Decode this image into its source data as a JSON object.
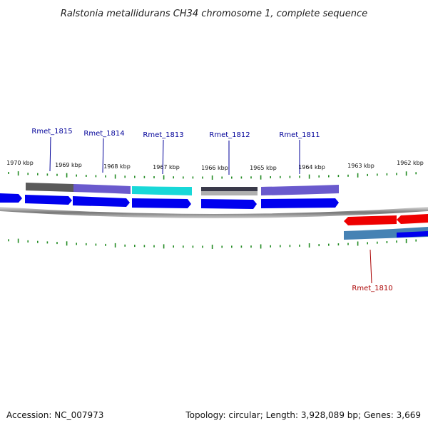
{
  "title": "Ralstonia metallidurans CH34 chromosome 1, complete sequence",
  "footer": {
    "accession": "Accession: NC_007973",
    "stats": "Topology: circular; Length: 3,928,089 bp; Genes: 3,669"
  },
  "colors": {
    "forward_cds": "#0000ee",
    "reverse_cds": "#ee0000",
    "tick": "#228b22",
    "label_forward": "#000099",
    "label_reverse": "#aa0000"
  },
  "kbp_labels": [
    "1970 kbp",
    "1969 kbp",
    "1968 kbp",
    "1967 kbp",
    "1966 kbp",
    "1965 kbp",
    "1964 kbp",
    "1963 kbp",
    "1962 kbp"
  ],
  "genes": [
    {
      "name": "Rmet_1815",
      "strand": "forward"
    },
    {
      "name": "Rmet_1814",
      "strand": "forward"
    },
    {
      "name": "Rmet_1813",
      "strand": "forward"
    },
    {
      "name": "Rmet_1812",
      "strand": "forward"
    },
    {
      "name": "Rmet_1811",
      "strand": "forward"
    },
    {
      "name": "Rmet_1810",
      "strand": "reverse"
    }
  ]
}
